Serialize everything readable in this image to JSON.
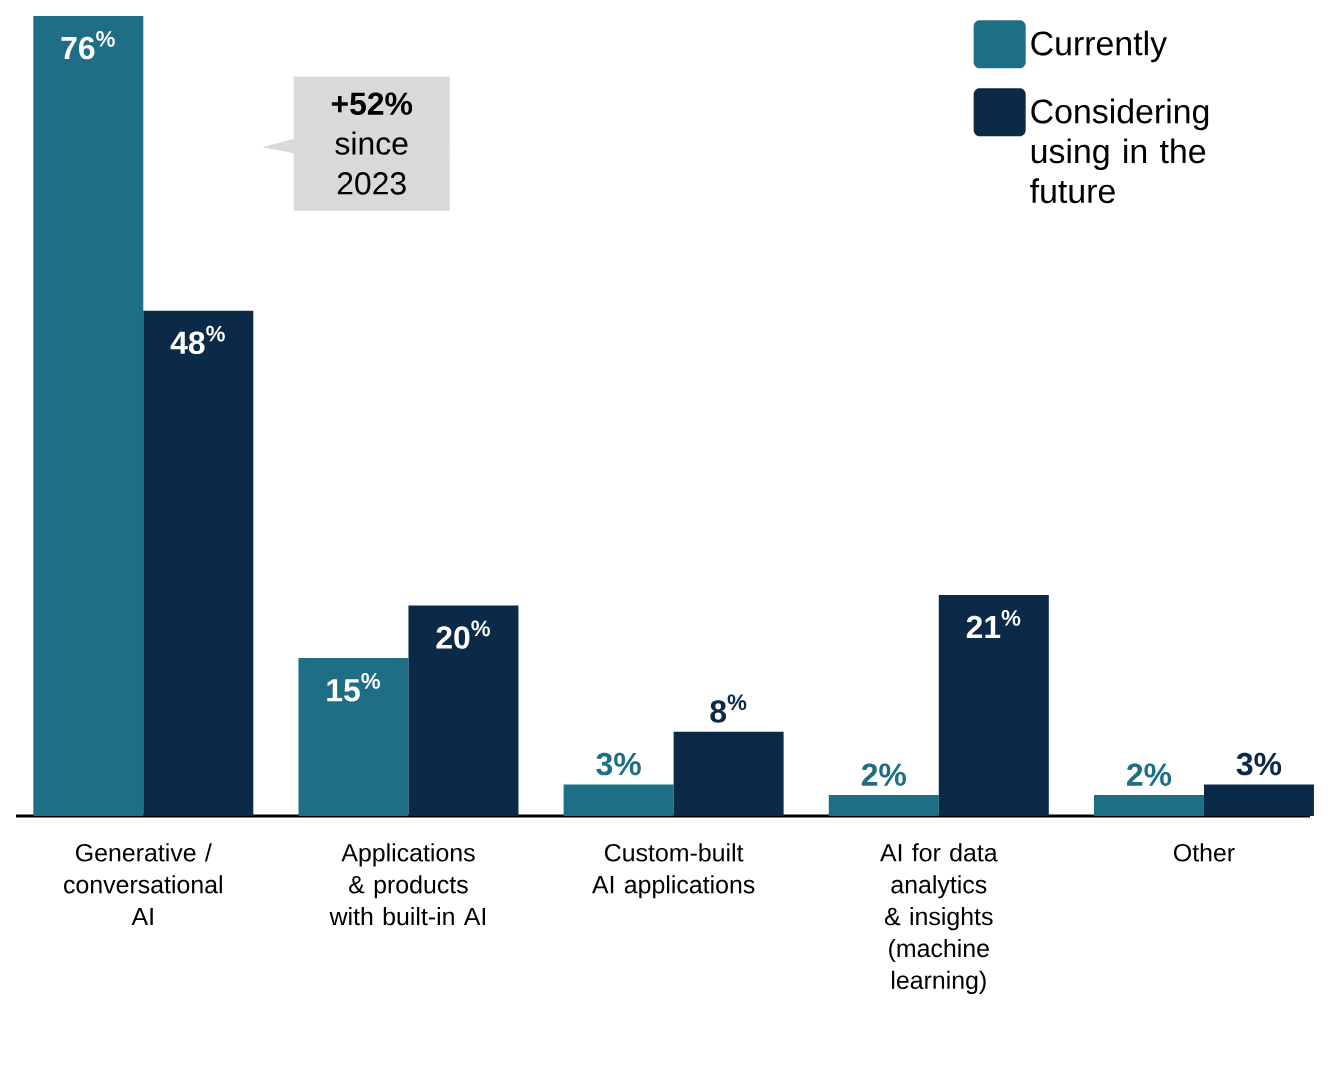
{
  "chart_data": {
    "type": "bar",
    "categories": [
      "Generative / conversational AI",
      "Applications & products with built-in AI",
      "Custom-built AI applications",
      "AI for data analytics & insights (machine learning)",
      "Other"
    ],
    "series": [
      {
        "name": "Currently",
        "color": "#1e6f86",
        "values": [
          76,
          15,
          3,
          2,
          2
        ],
        "value_labels": [
          "76$^{%}$",
          "15$^{%}$",
          "3%",
          "2%",
          "2%"
        ]
      },
      {
        "name": "Considering using in the future",
        "color": "#0b2a47",
        "values": [
          48,
          20,
          8,
          21,
          3
        ],
        "value_labels": [
          "48$^{%}$",
          "20$^{%}$",
          "8$^{%}$",
          "21$^{%}$",
          "3%"
        ]
      }
    ],
    "annotations": [
      "**+52%** since 2023"
    ],
    "legend": "top right"
  }
}
